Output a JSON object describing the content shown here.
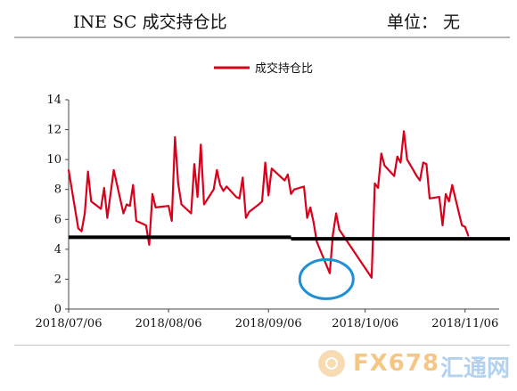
{
  "header": {
    "title": "INE SC 成交持仓比",
    "unit": "单位： 无"
  },
  "watermark": {
    "text1": "FX678",
    "text2": "汇通网"
  },
  "chart_data": {
    "type": "line",
    "ylim": [
      0,
      14
    ],
    "yticks": [
      0,
      2,
      4,
      6,
      8,
      10,
      12,
      14
    ],
    "xlim": [
      "2018-07-06",
      "2018-11-08"
    ],
    "xticks": [
      "2018/07/06",
      "2018/08/06",
      "2018/09/06",
      "2018/10/06",
      "2018/11/06"
    ],
    "legend": "top-center",
    "grid": false,
    "series": [
      {
        "name": "成交持仓比",
        "color": "#d9001b",
        "points": [
          [
            "2018-07-06",
            9.3
          ],
          [
            "2018-07-09",
            5.4
          ],
          [
            "2018-07-10",
            5.2
          ],
          [
            "2018-07-11",
            6.4
          ],
          [
            "2018-07-12",
            9.2
          ],
          [
            "2018-07-13",
            7.2
          ],
          [
            "2018-07-16",
            6.7
          ],
          [
            "2018-07-17",
            8.1
          ],
          [
            "2018-07-18",
            6.1
          ],
          [
            "2018-07-20",
            9.3
          ],
          [
            "2018-07-23",
            6.4
          ],
          [
            "2018-07-24",
            7.0
          ],
          [
            "2018-07-25",
            6.9
          ],
          [
            "2018-07-26",
            8.3
          ],
          [
            "2018-07-27",
            5.9
          ],
          [
            "2018-07-30",
            5.6
          ],
          [
            "2018-07-31",
            4.3
          ],
          [
            "2018-08-01",
            7.7
          ],
          [
            "2018-08-02",
            6.8
          ],
          [
            "2018-08-06",
            6.9
          ],
          [
            "2018-08-07",
            5.9
          ],
          [
            "2018-08-08",
            11.5
          ],
          [
            "2018-08-09",
            8.4
          ],
          [
            "2018-08-10",
            7.0
          ],
          [
            "2018-08-13",
            6.4
          ],
          [
            "2018-08-14",
            9.7
          ],
          [
            "2018-08-15",
            7.5
          ],
          [
            "2018-08-16",
            11.0
          ],
          [
            "2018-08-17",
            7.0
          ],
          [
            "2018-08-20",
            8.0
          ],
          [
            "2018-08-21",
            9.3
          ],
          [
            "2018-08-22",
            8.3
          ],
          [
            "2018-08-23",
            7.9
          ],
          [
            "2018-08-24",
            8.2
          ],
          [
            "2018-08-27",
            7.5
          ],
          [
            "2018-08-28",
            7.4
          ],
          [
            "2018-08-29",
            8.8
          ],
          [
            "2018-08-30",
            6.1
          ],
          [
            "2018-08-31",
            6.5
          ],
          [
            "2018-09-03",
            7.0
          ],
          [
            "2018-09-04",
            7.2
          ],
          [
            "2018-09-05",
            9.8
          ],
          [
            "2018-09-06",
            7.6
          ],
          [
            "2018-09-07",
            9.4
          ],
          [
            "2018-09-10",
            8.8
          ],
          [
            "2018-09-11",
            8.6
          ],
          [
            "2018-09-12",
            9.0
          ],
          [
            "2018-09-13",
            7.7
          ],
          [
            "2018-09-14",
            8.0
          ],
          [
            "2018-09-17",
            8.2
          ],
          [
            "2018-09-18",
            6.1
          ],
          [
            "2018-09-19",
            6.8
          ],
          [
            "2018-09-20",
            5.8
          ],
          [
            "2018-09-21",
            4.5
          ],
          [
            "2018-09-25",
            2.4
          ],
          [
            "2018-09-26",
            5.0
          ],
          [
            "2018-09-27",
            6.4
          ],
          [
            "2018-09-28",
            5.3
          ],
          [
            "2018-10-08",
            2.1
          ],
          [
            "2018-10-09",
            8.4
          ],
          [
            "2018-10-10",
            8.1
          ],
          [
            "2018-10-11",
            10.4
          ],
          [
            "2018-10-12",
            9.6
          ],
          [
            "2018-10-15",
            8.9
          ],
          [
            "2018-10-16",
            10.2
          ],
          [
            "2018-10-17",
            9.8
          ],
          [
            "2018-10-18",
            11.9
          ],
          [
            "2018-10-19",
            10.0
          ],
          [
            "2018-10-22",
            8.9
          ],
          [
            "2018-10-23",
            8.6
          ],
          [
            "2018-10-24",
            9.8
          ],
          [
            "2018-10-25",
            9.7
          ],
          [
            "2018-10-26",
            7.4
          ],
          [
            "2018-10-29",
            7.5
          ],
          [
            "2018-10-30",
            5.6
          ],
          [
            "2018-10-31",
            7.7
          ],
          [
            "2018-11-01",
            7.2
          ],
          [
            "2018-11-02",
            8.3
          ],
          [
            "2018-11-05",
            5.6
          ],
          [
            "2018-11-06",
            5.5
          ],
          [
            "2018-11-07",
            4.9
          ]
        ]
      }
    ],
    "annotations": [
      {
        "type": "hline",
        "y": 4.8,
        "x_from": "2018-07-06",
        "x_to": "2018-09-13",
        "color": "#000000"
      },
      {
        "type": "hline",
        "y": 4.7,
        "x_from": "2018-09-13",
        "x_to": "2018-11-23",
        "color": "#000000"
      },
      {
        "type": "ellipse",
        "cx": "2018-09-24",
        "cy": 2.0,
        "color": "#1e90d6"
      }
    ]
  }
}
